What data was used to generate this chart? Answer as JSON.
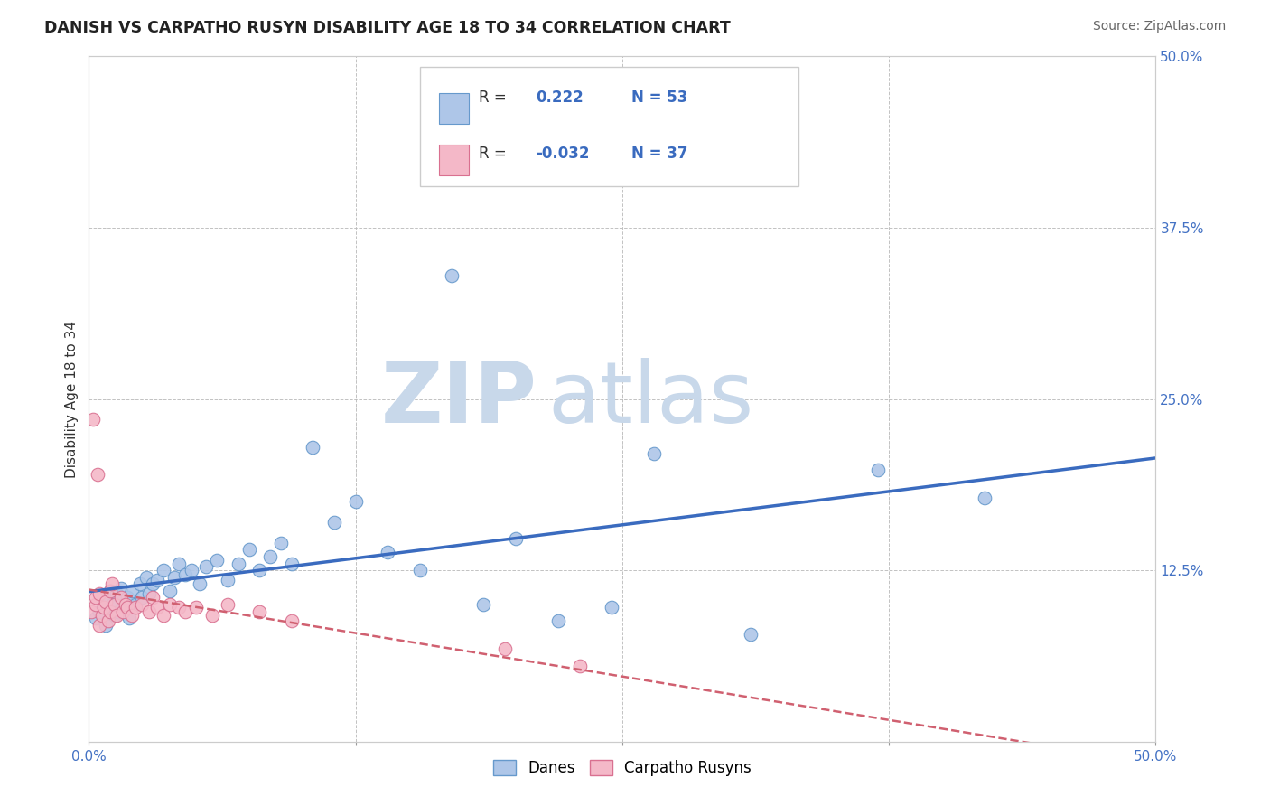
{
  "title": "DANISH VS CARPATHO RUSYN DISABILITY AGE 18 TO 34 CORRELATION CHART",
  "source_text": "Source: ZipAtlas.com",
  "ylabel": "Disability Age 18 to 34",
  "xlim": [
    0.0,
    0.5
  ],
  "ylim": [
    0.0,
    0.5
  ],
  "xtick_vals": [
    0.0,
    0.125,
    0.25,
    0.375,
    0.5
  ],
  "ytick_vals": [
    0.0,
    0.125,
    0.25,
    0.375,
    0.5
  ],
  "ytick_right_labels": [
    "",
    "12.5%",
    "25.0%",
    "37.5%",
    "50.0%"
  ],
  "danes_color": "#aec6e8",
  "danes_edge": "#6699cc",
  "carpatho_color": "#f4b8c8",
  "carpatho_edge": "#d97090",
  "danes_R": 0.222,
  "danes_N": 53,
  "carpatho_R": -0.032,
  "carpatho_N": 37,
  "danes_line_color": "#3a6bbf",
  "carpatho_line_color": "#d06070",
  "watermark_zip_color": "#c8d8ea",
  "watermark_atlas_color": "#c8d8ea",
  "grid_color": "#bbbbbb",
  "background_color": "#ffffff",
  "legend_labels": [
    "Danes",
    "Carpatho Rusyns"
  ],
  "danes_x": [
    0.003,
    0.005,
    0.007,
    0.008,
    0.009,
    0.01,
    0.01,
    0.011,
    0.012,
    0.013,
    0.014,
    0.015,
    0.016,
    0.018,
    0.019,
    0.02,
    0.022,
    0.024,
    0.025,
    0.027,
    0.028,
    0.03,
    0.032,
    0.035,
    0.038,
    0.04,
    0.042,
    0.045,
    0.048,
    0.052,
    0.055,
    0.06,
    0.065,
    0.07,
    0.075,
    0.08,
    0.085,
    0.09,
    0.095,
    0.105,
    0.115,
    0.125,
    0.14,
    0.155,
    0.17,
    0.185,
    0.2,
    0.22,
    0.245,
    0.265,
    0.31,
    0.37,
    0.42
  ],
  "danes_y": [
    0.09,
    0.095,
    0.1,
    0.085,
    0.105,
    0.095,
    0.11,
    0.1,
    0.092,
    0.108,
    0.095,
    0.112,
    0.098,
    0.105,
    0.09,
    0.11,
    0.1,
    0.115,
    0.105,
    0.12,
    0.108,
    0.115,
    0.118,
    0.125,
    0.11,
    0.12,
    0.13,
    0.122,
    0.125,
    0.115,
    0.128,
    0.132,
    0.118,
    0.13,
    0.14,
    0.125,
    0.135,
    0.145,
    0.13,
    0.215,
    0.16,
    0.175,
    0.138,
    0.125,
    0.34,
    0.1,
    0.148,
    0.088,
    0.098,
    0.21,
    0.078,
    0.198,
    0.178
  ],
  "carpatho_x": [
    0.001,
    0.002,
    0.003,
    0.003,
    0.004,
    0.005,
    0.005,
    0.006,
    0.007,
    0.008,
    0.009,
    0.01,
    0.01,
    0.011,
    0.012,
    0.013,
    0.015,
    0.016,
    0.017,
    0.018,
    0.02,
    0.022,
    0.025,
    0.028,
    0.03,
    0.032,
    0.035,
    0.038,
    0.042,
    0.045,
    0.05,
    0.058,
    0.065,
    0.08,
    0.095,
    0.195,
    0.23
  ],
  "carpatho_y": [
    0.095,
    0.235,
    0.1,
    0.105,
    0.195,
    0.085,
    0.108,
    0.092,
    0.098,
    0.102,
    0.088,
    0.11,
    0.095,
    0.115,
    0.1,
    0.092,
    0.105,
    0.095,
    0.1,
    0.098,
    0.092,
    0.098,
    0.1,
    0.095,
    0.105,
    0.098,
    0.092,
    0.1,
    0.098,
    0.095,
    0.098,
    0.092,
    0.1,
    0.095,
    0.088,
    0.068,
    0.055
  ]
}
